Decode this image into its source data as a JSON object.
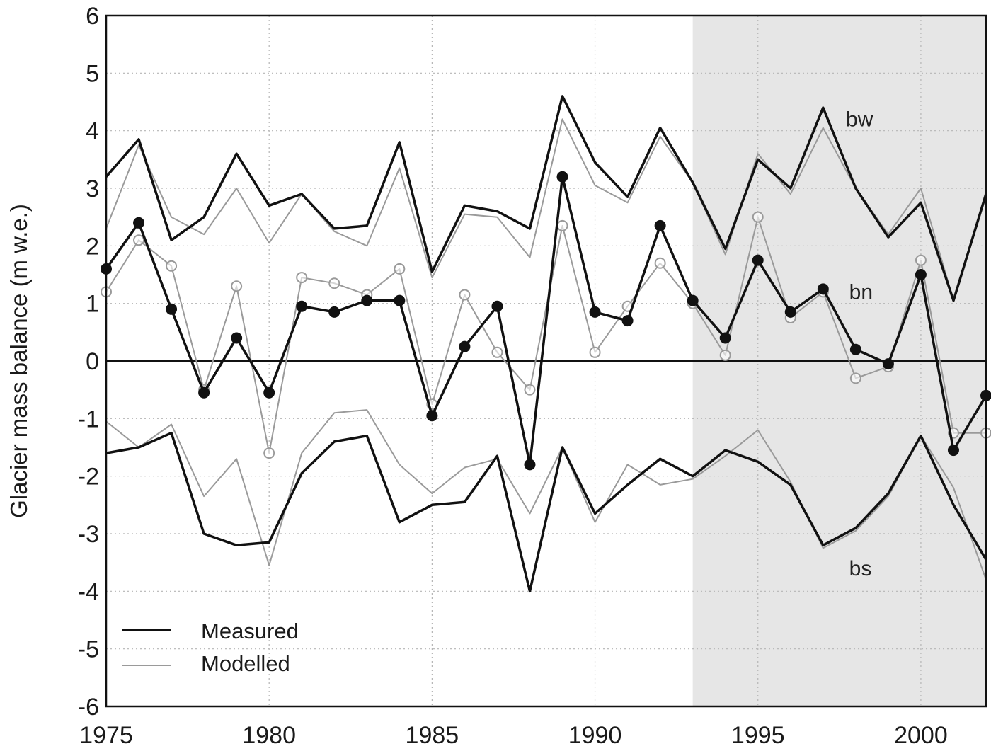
{
  "chart_data": {
    "type": "line",
    "title": "",
    "xlabel": "",
    "ylabel": "Glacier mass balance (m w.e.)",
    "xlim": [
      1975,
      2002
    ],
    "ylim": [
      -6,
      6
    ],
    "x_ticks": [
      1975,
      1980,
      1985,
      1990,
      1995,
      2000
    ],
    "y_ticks": [
      -6,
      -5,
      -4,
      -3,
      -2,
      -1,
      0,
      1,
      2,
      3,
      4,
      5,
      6
    ],
    "grid": true,
    "shaded_region": {
      "x_start": 1993,
      "x_end": 2002,
      "color": "#e6e6e6"
    },
    "zero_line": 0,
    "annotations": [
      {
        "text": "bw",
        "x": 1997.7,
        "y": 4.2
      },
      {
        "text": "bn",
        "x": 1997.8,
        "y": 1.2
      },
      {
        "text": "bs",
        "x": 1997.8,
        "y": -3.6
      }
    ],
    "legend": {
      "position": "bottom-left",
      "entries": [
        {
          "label": "Measured",
          "color": "#111111"
        },
        {
          "label": "Modelled",
          "color": "#9a9a9a"
        }
      ]
    },
    "colors": {
      "measured": "#111111",
      "modelled": "#9a9a9a",
      "grid": "#b5b5b5"
    },
    "x": [
      1975,
      1976,
      1977,
      1978,
      1979,
      1980,
      1981,
      1982,
      1983,
      1984,
      1985,
      1986,
      1987,
      1988,
      1989,
      1990,
      1991,
      1992,
      1993,
      1994,
      1995,
      1996,
      1997,
      1998,
      1999,
      2000,
      2001,
      2002
    ],
    "series": [
      {
        "group": "bw",
        "kind": "measured",
        "markers": false,
        "values": [
          3.2,
          3.85,
          2.1,
          2.5,
          3.6,
          2.7,
          2.9,
          2.3,
          2.35,
          3.8,
          1.55,
          2.7,
          2.6,
          2.3,
          4.6,
          3.45,
          2.85,
          4.05,
          3.1,
          1.95,
          3.5,
          3.0,
          4.4,
          3.0,
          2.15,
          2.75,
          1.05,
          2.9
        ]
      },
      {
        "group": "bw",
        "kind": "modelled",
        "markers": false,
        "values": [
          2.3,
          3.75,
          2.5,
          2.2,
          3.0,
          2.05,
          2.9,
          2.25,
          2.0,
          3.35,
          1.45,
          2.55,
          2.5,
          1.8,
          4.2,
          3.05,
          2.75,
          3.9,
          3.1,
          1.85,
          3.6,
          2.9,
          4.05,
          3.0,
          2.2,
          3.0,
          1.05,
          2.95
        ]
      },
      {
        "group": "bn",
        "kind": "measured",
        "markers": true,
        "values": [
          1.6,
          2.4,
          0.9,
          -0.55,
          0.4,
          -0.55,
          0.95,
          0.85,
          1.05,
          1.05,
          -0.95,
          0.25,
          0.95,
          -1.8,
          3.2,
          0.85,
          0.7,
          2.35,
          1.05,
          0.4,
          1.75,
          0.85,
          1.25,
          0.2,
          -0.05,
          1.5,
          -1.55,
          -0.6
        ]
      },
      {
        "group": "bn",
        "kind": "modelled",
        "markers": true,
        "values": [
          1.2,
          2.1,
          1.65,
          -0.5,
          1.3,
          -1.6,
          1.45,
          1.35,
          1.15,
          1.6,
          -0.75,
          1.15,
          0.15,
          -0.5,
          2.35,
          0.15,
          0.95,
          1.7,
          1.0,
          0.1,
          2.5,
          0.75,
          1.2,
          -0.3,
          -0.1,
          1.75,
          -1.25,
          -1.25
        ]
      },
      {
        "group": "bs",
        "kind": "measured",
        "markers": false,
        "values": [
          -1.6,
          -1.5,
          -1.25,
          -3.0,
          -3.2,
          -3.15,
          -1.95,
          -1.4,
          -1.3,
          -2.8,
          -2.5,
          -2.45,
          -1.65,
          -4.0,
          -1.5,
          -2.65,
          -2.15,
          -1.7,
          -2.0,
          -1.55,
          -1.75,
          -2.15,
          -3.2,
          -2.9,
          -2.3,
          -1.3,
          -2.5,
          -3.45
        ]
      },
      {
        "group": "bs",
        "kind": "modelled",
        "markers": false,
        "values": [
          -1.05,
          -1.5,
          -1.1,
          -2.35,
          -1.7,
          -3.55,
          -1.6,
          -0.9,
          -0.85,
          -1.8,
          -2.3,
          -1.85,
          -1.7,
          -2.65,
          -1.5,
          -2.8,
          -1.8,
          -2.15,
          -2.05,
          -1.65,
          -1.2,
          -2.1,
          -3.25,
          -2.95,
          -2.35,
          -1.3,
          -2.2,
          -3.8
        ]
      }
    ]
  }
}
